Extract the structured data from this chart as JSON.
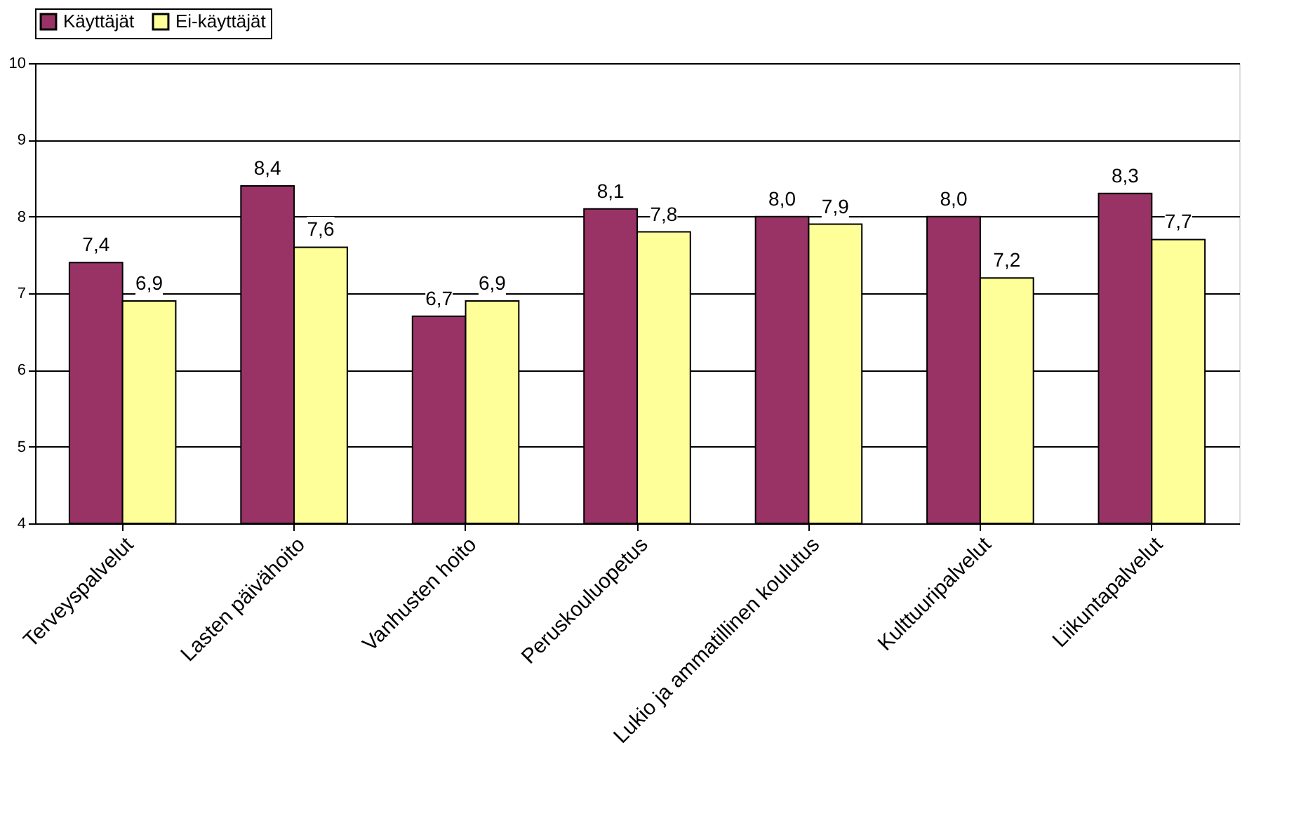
{
  "chart_data": {
    "type": "bar",
    "categories": [
      "Terveyspalvelut",
      "Lasten päivähoito",
      "Vanhusten hoito",
      "Peruskouluopetus",
      "Lukio ja ammatillinen koulutus",
      "Kulttuuripalvelut",
      "Liikuntapalvelut"
    ],
    "series": [
      {
        "name": "Käyttäjät",
        "color": "#993366",
        "values": [
          7.4,
          8.4,
          6.7,
          8.1,
          8.0,
          8.0,
          8.3
        ],
        "value_labels": [
          "7,4",
          "8,4",
          "6,7",
          "8,1",
          "8,0",
          "8,0",
          "8,3"
        ]
      },
      {
        "name": "Ei-käyttäjät",
        "color": "#ffff99",
        "values": [
          6.9,
          7.6,
          6.9,
          7.8,
          7.9,
          7.2,
          7.7
        ],
        "value_labels": [
          "6,9",
          "7,6",
          "6,9",
          "7,8",
          "7,9",
          "7,2",
          "7,7"
        ]
      }
    ],
    "ylim": [
      4,
      10
    ],
    "yticks": [
      4,
      5,
      6,
      7,
      8,
      9,
      10
    ],
    "grid": "y",
    "legend": "top"
  }
}
